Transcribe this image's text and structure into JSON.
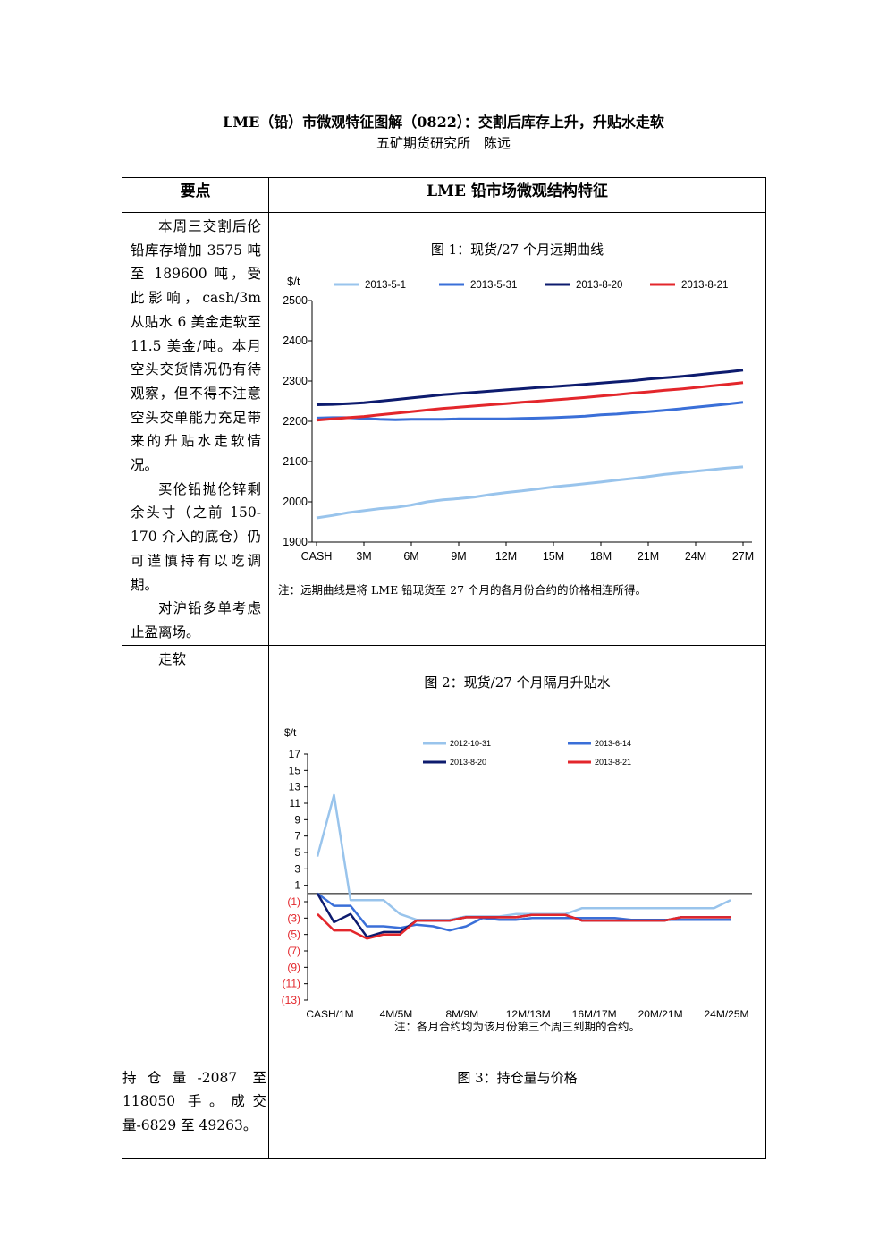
{
  "doc": {
    "title": "LME（铅）市微观特征图解（0822）：交割后库存上升，升贴水走软",
    "subtitle": "五矿期货研究所　陈远"
  },
  "table": {
    "header_left": "要点",
    "header_right": "LME 铅市场微观结构特征",
    "row1_paragraphs": [
      "本周三交割后伦铅库存增加 3575 吨至 189600 吨，受此影响，cash/3m 从贴水 6 美金走软至 11.5 美金/吨。本月空头交货情况仍有待观察，但不得不注意空头交单能力充足带来的升贴水走软情况。",
      "买伦铅抛伦锌剩余头寸（之前 150-170 介入的底仓）仍可谨慎持有以吃调期。",
      "对沪铅多单考虑止盈离场。"
    ],
    "row2_left": "走软",
    "row3_left": "持仓量-2087 至 118050 手。成交量-6829 至 49263。"
  },
  "chart1": {
    "title": "图 1：现货/27 个月远期曲线",
    "note": "注：远期曲线是将 LME 铅现货至 27 个月的各月份合约的价格相连所得。"
  },
  "chart2": {
    "title": "图 2：现货/27 个月隔月升贴水",
    "note": "注：各月合约均为该月份第三个周三到期的合约。"
  },
  "chart3": {
    "title": "图 3：持仓量与价格"
  },
  "chart_data": [
    {
      "type": "line",
      "title": "图 1：现货/27 个月远期曲线",
      "ylabel": "$/t",
      "ylim": [
        1900,
        2500
      ],
      "yticks": [
        1900,
        2000,
        2100,
        2200,
        2300,
        2400,
        2500
      ],
      "x_labels": [
        "CASH",
        "3M",
        "6M",
        "9M",
        "12M",
        "15M",
        "18M",
        "21M",
        "24M",
        "27M"
      ],
      "legend_position": "top",
      "series": [
        {
          "name": "2013-5-1",
          "color": "#99c4ec",
          "values": [
            1960,
            1966,
            1973,
            1978,
            1983,
            1986,
            1992,
            2000,
            2005,
            2008,
            2012,
            2018,
            2023,
            2027,
            2032,
            2037,
            2041,
            2045,
            2049,
            2054,
            2058,
            2063,
            2068,
            2072,
            2076,
            2080,
            2084,
            2087
          ]
        },
        {
          "name": "2013-5-31",
          "color": "#3a6fd8",
          "values": [
            2208,
            2209,
            2209,
            2207,
            2205,
            2204,
            2205,
            2205,
            2205,
            2206,
            2206,
            2206,
            2206,
            2207,
            2208,
            2209,
            2211,
            2213,
            2216,
            2218,
            2221,
            2224,
            2227,
            2231,
            2235,
            2239,
            2243,
            2247
          ]
        },
        {
          "name": "2013-8-20",
          "color": "#0d1b6e",
          "values": [
            2241,
            2242,
            2244,
            2246,
            2250,
            2254,
            2258,
            2262,
            2266,
            2269,
            2272,
            2275,
            2278,
            2281,
            2284,
            2286,
            2289,
            2292,
            2295,
            2298,
            2301,
            2305,
            2308,
            2311,
            2315,
            2319,
            2323,
            2327
          ]
        },
        {
          "name": "2013-8-21",
          "color": "#e3262b",
          "values": [
            2203,
            2206,
            2209,
            2212,
            2216,
            2220,
            2224,
            2228,
            2232,
            2235,
            2238,
            2241,
            2244,
            2247,
            2250,
            2253,
            2256,
            2259,
            2263,
            2266,
            2270,
            2273,
            2277,
            2280,
            2284,
            2288,
            2292,
            2296
          ]
        }
      ]
    },
    {
      "type": "line",
      "title": "图 2：现货/27 个月隔月升贴水",
      "ylabel": "$/t",
      "ylim": [
        -13,
        17
      ],
      "yticks": [
        17,
        15,
        13,
        11,
        9,
        7,
        5,
        3,
        1,
        -1,
        -3,
        -5,
        -7,
        -9,
        -11,
        -13
      ],
      "ytick_labels": [
        "17",
        "15",
        "13",
        "11",
        "9",
        "7",
        "5",
        "3",
        "1",
        "(1)",
        "(3)",
        "(5)",
        "(7)",
        "(9)",
        "(11)",
        "(13)"
      ],
      "x_labels": [
        "CASH/1M",
        "4M/5M",
        "8M/9M",
        "12M/13M",
        "16M/17M",
        "20M/21M",
        "24M/25M"
      ],
      "x_label_index": [
        0,
        4,
        8,
        12,
        16,
        20,
        24
      ],
      "legend_position": "top",
      "series": [
        {
          "name": "2012-10-31",
          "color": "#99c4ec",
          "values": [
            4.5,
            12,
            -0.8,
            -0.8,
            -0.8,
            -2.5,
            -3.2,
            -3.2,
            -3.2,
            -2.8,
            -2.8,
            -2.8,
            -2.5,
            -2.5,
            -2.5,
            -2.5,
            -1.8,
            -1.8,
            -1.8,
            -1.8,
            -1.8,
            -1.8,
            -1.8,
            -1.8,
            -1.8,
            -0.8
          ]
        },
        {
          "name": "2013-6-14",
          "color": "#3a6fd8",
          "values": [
            0,
            -1.5,
            -1.5,
            -4,
            -4,
            -4.2,
            -3.8,
            -4,
            -4.5,
            -4,
            -3,
            -3.2,
            -3.2,
            -3,
            -3,
            -3,
            -3,
            -3,
            -3,
            -3.2,
            -3.2,
            -3.2,
            -3.2,
            -3.2,
            -3.2,
            -3.2
          ]
        },
        {
          "name": "2013-8-20",
          "color": "#0d1b6e",
          "values": [
            0,
            -3.5,
            -2.5,
            -5.3,
            -4.7,
            -4.7,
            -3.3,
            -3.3,
            -3.3,
            -2.9,
            -2.9,
            -2.9,
            -2.9,
            -2.6,
            -2.6,
            -2.6,
            -3.3,
            -3.3,
            -3.3,
            -3.3,
            -3.3,
            -3.3,
            -2.9,
            -2.9,
            -2.9,
            -2.9
          ]
        },
        {
          "name": "2013-8-21",
          "color": "#e3262b",
          "values": [
            -2.5,
            -4.5,
            -4.5,
            -5.5,
            -5,
            -5,
            -3.3,
            -3.3,
            -3.3,
            -2.9,
            -2.9,
            -2.9,
            -2.9,
            -2.6,
            -2.6,
            -2.6,
            -3.3,
            -3.3,
            -3.3,
            -3.3,
            -3.3,
            -3.3,
            -2.9,
            -2.9,
            -2.9,
            -2.9
          ]
        }
      ]
    }
  ]
}
